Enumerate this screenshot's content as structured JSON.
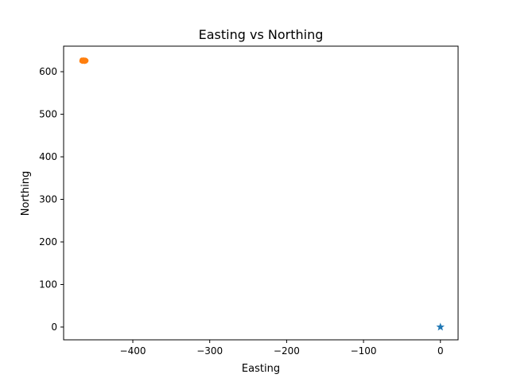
{
  "chart_data": {
    "type": "scatter",
    "title": "Easting vs Northing",
    "xlabel": "Easting",
    "ylabel": "Northing",
    "xlim": [
      -490,
      23
    ],
    "ylim": [
      -30,
      660
    ],
    "xticks": [
      -400,
      -300,
      -200,
      -100,
      0
    ],
    "xtick_labels": [
      "−400",
      "−300",
      "−200",
      "−100",
      "0"
    ],
    "yticks": [
      0,
      100,
      200,
      300,
      400,
      500,
      600
    ],
    "ytick_labels": [
      "0",
      "100",
      "200",
      "300",
      "400",
      "500",
      "600"
    ],
    "grid": false,
    "series": [
      {
        "marker": "star",
        "color": "#1f77b4",
        "points": [
          [
            0,
            0
          ]
        ]
      },
      {
        "marker": "circle",
        "color": "#ff7f0e",
        "points": [
          [
            -466.5,
            625.2
          ],
          [
            -465.8,
            626.4
          ],
          [
            -465.2,
            624.8
          ],
          [
            -464.6,
            627.1
          ],
          [
            -464.0,
            625.9
          ],
          [
            -463.4,
            624.3
          ],
          [
            -462.9,
            626.8
          ],
          [
            -462.3,
            625.4
          ],
          [
            -461.8,
            627.5
          ],
          [
            -461.2,
            624.6
          ],
          [
            -460.7,
            626.1
          ],
          [
            -466.1,
            627.8
          ],
          [
            -465.4,
            623.9
          ],
          [
            -463.9,
            628.0
          ],
          [
            -462.6,
            623.7
          ],
          [
            -461.5,
            625.0
          ]
        ]
      }
    ]
  }
}
